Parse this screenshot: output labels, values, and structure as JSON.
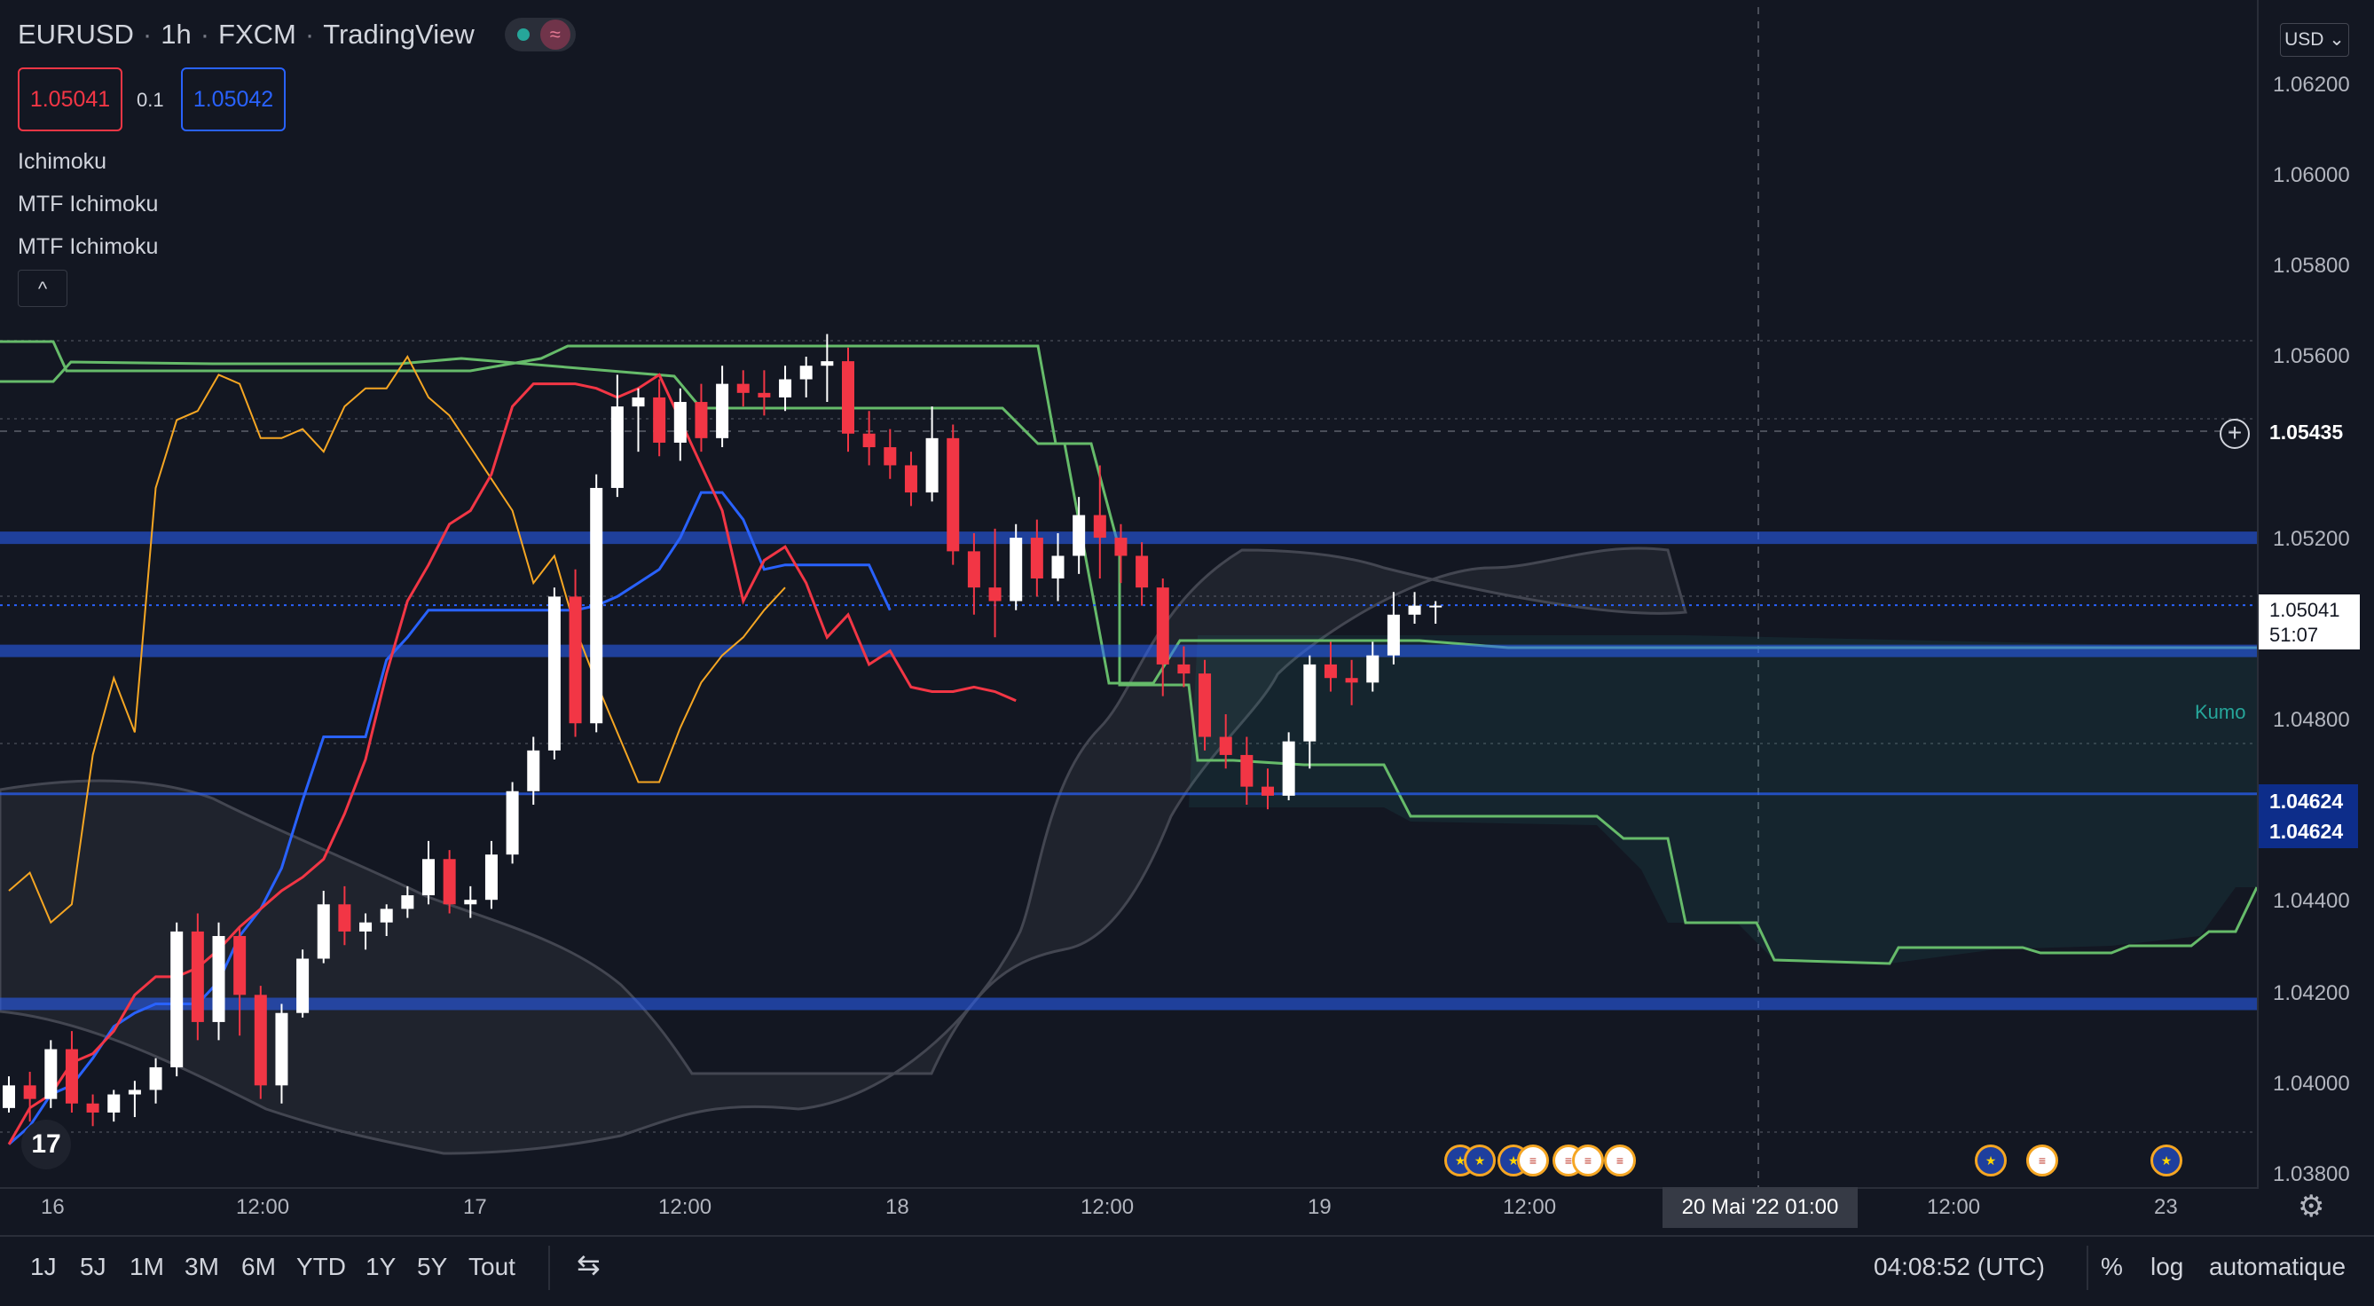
{
  "header": {
    "symbol": "EURUSD",
    "interval": "1h",
    "broker": "FXCM",
    "source": "TradingView",
    "separator": "·",
    "sell_price": "1.05041",
    "buy_price": "1.05042",
    "spread": "0.1"
  },
  "indicators": [
    "Ichimoku",
    "MTF Ichimoku",
    "MTF Ichimoku"
  ],
  "currency_button": "USD ⌄",
  "price_axis": {
    "ticks": [
      "1.06200",
      "1.06000",
      "1.05800",
      "1.05600",
      "1.05200",
      "1.04800",
      "1.04400",
      "1.04200",
      "1.04000",
      "1.03800"
    ],
    "crosshair_price": "1.05435",
    "last_price": "1.05041",
    "countdown": "51:07",
    "level_1": "1.04624",
    "level_2": "1.04624"
  },
  "kumo_label": "Kumo",
  "time_axis": {
    "labels": [
      "16",
      "12:00",
      "17",
      "12:00",
      "18",
      "12:00",
      "19",
      "12:00",
      "12:00",
      "23"
    ],
    "crosshair_time": "20 Mai '22   01:00"
  },
  "bottom_toolbar": {
    "timeframes": [
      "1J",
      "5J",
      "1M",
      "3M",
      "6M",
      "YTD",
      "1Y",
      "5Y",
      "Tout"
    ],
    "clock": "04:08:52 (UTC)",
    "percent": "%",
    "log": "log",
    "auto": "automatique"
  },
  "logo": "17",
  "colors": {
    "background": "#131722",
    "up_candle": "#ffffff",
    "down_candle": "#f23645",
    "tenkan": "#f23645",
    "kijun": "#2962ff",
    "chikou": "#f5a623",
    "span_b": "#66bb6a",
    "level_line": "#2962ff"
  },
  "chart_data": {
    "type": "candlestick",
    "interval": "1h",
    "y_range": [
      1.0378,
      1.0628
    ],
    "price_levels": [
      1.0519,
      1.0494,
      1.04624,
      1.0416
    ],
    "tenkan": [
      1.0385,
      1.0393,
      1.0396,
      1.0403,
      1.0405,
      1.041,
      1.0418,
      1.0422,
      1.0422,
      1.0424,
      1.0428,
      1.0433,
      1.0437,
      1.0441,
      1.0444,
      1.0448,
      1.0458,
      1.047,
      1.0489,
      1.0505,
      1.0513,
      1.0522,
      1.0525,
      1.0533,
      1.0548,
      1.0553,
      1.0553,
      1.0553,
      1.0552,
      1.055,
      1.0552,
      1.0555,
      1.0545,
      1.0535,
      1.0525,
      1.0505,
      1.0514,
      1.0517,
      1.0509,
      1.0497,
      1.0502,
      1.0491,
      1.0494,
      1.0486,
      1.0485,
      1.0485,
      1.0486,
      1.0485,
      1.0483
    ],
    "kijun": [
      1.0385,
      1.0389,
      1.0396,
      1.0398,
      1.0404,
      1.0411,
      1.0414,
      1.0416,
      1.0416,
      1.0416,
      1.0421,
      1.0431,
      1.0437,
      1.0446,
      1.0461,
      1.0475,
      1.0475,
      1.0475,
      1.0492,
      1.0497,
      1.0503,
      1.0503,
      1.0503,
      1.0503,
      1.0503,
      1.0503,
      1.0503,
      1.0503,
      1.0504,
      1.0506,
      1.0509,
      1.0512,
      1.0519,
      1.0529,
      1.0529,
      1.0523,
      1.0512,
      1.0513,
      1.0513,
      1.0513,
      1.0513,
      1.0513,
      1.0503
    ],
    "chikou": [
      1.0441,
      1.0445,
      1.0434,
      1.0438,
      1.0471,
      1.0488,
      1.0476,
      1.053,
      1.0545,
      1.0547,
      1.0555,
      1.0553,
      1.0541,
      1.0541,
      1.0543,
      1.0538,
      1.0548,
      1.0552,
      1.0552,
      1.0559,
      1.055,
      1.0546,
      1.0539,
      1.0532,
      1.0525,
      1.0509,
      1.0515,
      1.0499,
      1.0487,
      1.0476,
      1.0465,
      1.0465,
      1.0477,
      1.0487,
      1.0493,
      1.0497,
      1.0503,
      1.0508
    ],
    "candles_ohlc": [
      [
        1.0393,
        1.04,
        1.0392,
        1.0398
      ],
      [
        1.0398,
        1.0401,
        1.039,
        1.0395
      ],
      [
        1.0395,
        1.0408,
        1.0393,
        1.0406
      ],
      [
        1.0406,
        1.041,
        1.0392,
        1.0394
      ],
      [
        1.0394,
        1.0396,
        1.0389,
        1.0392
      ],
      [
        1.0392,
        1.0397,
        1.039,
        1.0396
      ],
      [
        1.0396,
        1.0399,
        1.0391,
        1.0397
      ],
      [
        1.0397,
        1.0404,
        1.0394,
        1.0402
      ],
      [
        1.0402,
        1.0434,
        1.04,
        1.0432
      ],
      [
        1.0432,
        1.0436,
        1.0408,
        1.0412
      ],
      [
        1.0412,
        1.0434,
        1.0408,
        1.0431
      ],
      [
        1.0431,
        1.0433,
        1.0409,
        1.0418
      ],
      [
        1.0418,
        1.042,
        1.0395,
        1.0398
      ],
      [
        1.0398,
        1.0416,
        1.0394,
        1.0414
      ],
      [
        1.0414,
        1.0428,
        1.0413,
        1.0426
      ],
      [
        1.0426,
        1.0441,
        1.0425,
        1.0438
      ],
      [
        1.0438,
        1.0442,
        1.0429,
        1.0432
      ],
      [
        1.0432,
        1.0436,
        1.0428,
        1.0434
      ],
      [
        1.0434,
        1.0438,
        1.0431,
        1.0437
      ],
      [
        1.0437,
        1.0442,
        1.0435,
        1.044
      ],
      [
        1.044,
        1.0452,
        1.0438,
        1.0448
      ],
      [
        1.0448,
        1.045,
        1.0436,
        1.0438
      ],
      [
        1.0438,
        1.0442,
        1.0435,
        1.0439
      ],
      [
        1.0439,
        1.0452,
        1.0437,
        1.0449
      ],
      [
        1.0449,
        1.0465,
        1.0447,
        1.0463
      ],
      [
        1.0463,
        1.0475,
        1.046,
        1.0472
      ],
      [
        1.0472,
        1.0508,
        1.047,
        1.0506
      ],
      [
        1.0506,
        1.0512,
        1.0475,
        1.0478
      ],
      [
        1.0478,
        1.0533,
        1.0476,
        1.053
      ],
      [
        1.053,
        1.0555,
        1.0528,
        1.0548
      ],
      [
        1.0548,
        1.0552,
        1.0538,
        1.055
      ],
      [
        1.055,
        1.0554,
        1.0537,
        1.054
      ],
      [
        1.054,
        1.0552,
        1.0536,
        1.0549
      ],
      [
        1.0549,
        1.0553,
        1.0538,
        1.0541
      ],
      [
        1.0541,
        1.0557,
        1.0539,
        1.0553
      ],
      [
        1.0553,
        1.0556,
        1.0548,
        1.0551
      ],
      [
        1.0551,
        1.0556,
        1.0546,
        1.055
      ],
      [
        1.055,
        1.0557,
        1.0547,
        1.0554
      ],
      [
        1.0554,
        1.0559,
        1.055,
        1.0557
      ],
      [
        1.0557,
        1.0564,
        1.0549,
        1.0558
      ],
      [
        1.0558,
        1.0561,
        1.0538,
        1.0542
      ],
      [
        1.0542,
        1.0547,
        1.0535,
        1.0539
      ],
      [
        1.0539,
        1.0543,
        1.0532,
        1.0535
      ],
      [
        1.0535,
        1.0538,
        1.0526,
        1.0529
      ],
      [
        1.0529,
        1.0548,
        1.0527,
        1.0541
      ],
      [
        1.0541,
        1.0544,
        1.0513,
        1.0516
      ],
      [
        1.0516,
        1.052,
        1.0502,
        1.0508
      ],
      [
        1.0508,
        1.0521,
        1.0497,
        1.0505
      ],
      [
        1.0505,
        1.0522,
        1.0503,
        1.0519
      ],
      [
        1.0519,
        1.0523,
        1.0506,
        1.051
      ],
      [
        1.051,
        1.052,
        1.0505,
        1.0515
      ],
      [
        1.0515,
        1.0528,
        1.0511,
        1.0524
      ],
      [
        1.0524,
        1.0535,
        1.051,
        1.0519
      ],
      [
        1.0519,
        1.0522,
        1.0509,
        1.0515
      ],
      [
        1.0515,
        1.0518,
        1.0504,
        1.0508
      ],
      [
        1.0508,
        1.051,
        1.0484,
        1.0491
      ],
      [
        1.0491,
        1.0495,
        1.0486,
        1.0489
      ],
      [
        1.0489,
        1.0492,
        1.0472,
        1.0475
      ],
      [
        1.0475,
        1.048,
        1.0468,
        1.0471
      ],
      [
        1.0471,
        1.0475,
        1.046,
        1.0464
      ],
      [
        1.0464,
        1.0468,
        1.0459,
        1.0462
      ],
      [
        1.0462,
        1.0476,
        1.0461,
        1.0474
      ],
      [
        1.0474,
        1.0493,
        1.0468,
        1.0491
      ],
      [
        1.0491,
        1.0496,
        1.0485,
        1.0488
      ],
      [
        1.0488,
        1.0492,
        1.0482,
        1.0487
      ],
      [
        1.0487,
        1.0496,
        1.0485,
        1.0493
      ],
      [
        1.0493,
        1.0507,
        1.0491,
        1.0502
      ],
      [
        1.0502,
        1.0507,
        1.05,
        1.0504
      ],
      [
        1.0504,
        1.0505,
        1.05,
        1.0504
      ]
    ]
  }
}
